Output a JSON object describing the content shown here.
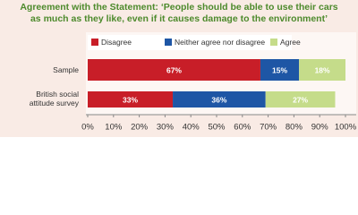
{
  "chart_data": {
    "type": "stacked-bar-horizontal",
    "title": [
      "Agreement with the Statement: ‘People should be able to use their cars",
      "as much as they like, even if it causes damage to the environment’"
    ],
    "categories": [
      "Sample",
      "British social attitude survey"
    ],
    "series": [
      {
        "name": "Disagree",
        "color": "#c81e28",
        "values": [
          67,
          33
        ],
        "value_labels": [
          "67%",
          "33%"
        ]
      },
      {
        "name": "Neither agree nor disagree",
        "color": "#1e56a5",
        "values": [
          15,
          36
        ],
        "value_labels": [
          "15%",
          "36%"
        ]
      },
      {
        "name": "Agree",
        "color": "#c5dc8a",
        "values": [
          18,
          27
        ],
        "value_labels": [
          "18%",
          "27%"
        ]
      }
    ],
    "xlim": [
      0,
      100
    ],
    "xticks": [
      {
        "value": 0,
        "label": "0%"
      },
      {
        "value": 10,
        "label": "10%"
      },
      {
        "value": 20,
        "label": "20%"
      },
      {
        "value": 30,
        "label": "30%"
      },
      {
        "value": 40,
        "label": "40%"
      },
      {
        "value": 50,
        "label": "50%"
      },
      {
        "value": 60,
        "label": "60%"
      },
      {
        "value": 70,
        "label": "70%"
      },
      {
        "value": 80,
        "label": "80%"
      },
      {
        "value": 90,
        "label": "90%"
      },
      {
        "value": 100,
        "label": "100%"
      }
    ],
    "legend": "top-left"
  }
}
